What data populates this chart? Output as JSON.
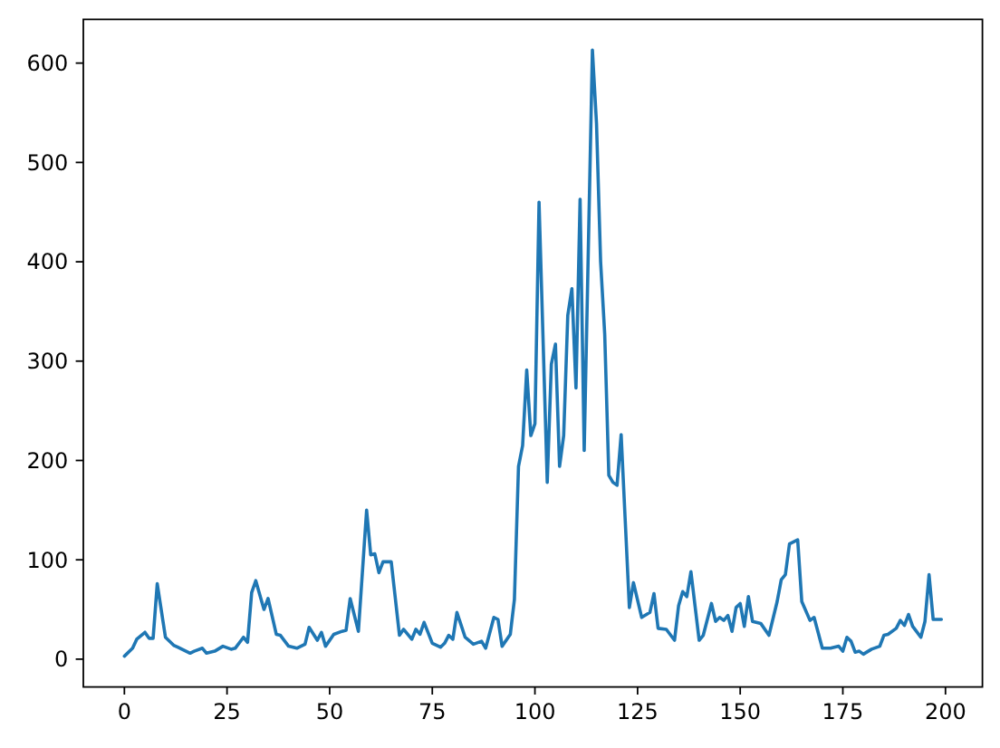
{
  "chart_data": {
    "type": "line",
    "color": "#1f77b4",
    "x": [
      0,
      2,
      3,
      5,
      6,
      7,
      8,
      10,
      12,
      13,
      16,
      17,
      19,
      20,
      22,
      24,
      26,
      27,
      29,
      30,
      31,
      32,
      34,
      35,
      37,
      38,
      40,
      42,
      44,
      45,
      47,
      48,
      49,
      51,
      53,
      54,
      55,
      57,
      59,
      60,
      61,
      62,
      63,
      65,
      67,
      68,
      70,
      71,
      72,
      73,
      75,
      77,
      78,
      79,
      80,
      81,
      83,
      85,
      87,
      88,
      90,
      91,
      92,
      94,
      95,
      96,
      97,
      98,
      99,
      100,
      101,
      103,
      104,
      105,
      106,
      107,
      108,
      109,
      110,
      111,
      112,
      114,
      115,
      116,
      117,
      118,
      119,
      120,
      121,
      123,
      124,
      126,
      128,
      129,
      130,
      132,
      134,
      135,
      136,
      137,
      138,
      140,
      141,
      143,
      144,
      145,
      146,
      147,
      148,
      149,
      150,
      151,
      152,
      153,
      155,
      157,
      159,
      160,
      161,
      162,
      164,
      165,
      167,
      168,
      170,
      172,
      174,
      175,
      176,
      177,
      178,
      179,
      180,
      182,
      184,
      185,
      186,
      188,
      189,
      190,
      191,
      192,
      194,
      195,
      196,
      197,
      199
    ],
    "values": [
      3,
      11,
      20,
      27,
      21,
      21,
      76,
      22,
      14,
      12,
      6,
      8,
      11,
      6,
      8,
      13,
      10,
      11,
      22,
      17,
      67,
      79,
      50,
      61,
      25,
      24,
      13,
      11,
      15,
      32,
      19,
      27,
      13,
      25,
      28,
      29,
      61,
      28,
      150,
      105,
      106,
      87,
      98,
      98,
      24,
      30,
      20,
      30,
      25,
      37,
      16,
      12,
      16,
      24,
      20,
      47,
      22,
      15,
      18,
      11,
      42,
      40,
      13,
      25,
      60,
      194,
      215,
      291,
      225,
      237,
      460,
      178,
      297,
      317,
      194,
      225,
      346,
      373,
      273,
      463,
      210,
      613,
      539,
      400,
      327,
      185,
      178,
      175,
      226,
      52,
      77,
      42,
      47,
      66,
      31,
      30,
      19,
      54,
      68,
      63,
      88,
      19,
      24,
      56,
      38,
      42,
      39,
      44,
      28,
      52,
      56,
      33,
      63,
      38,
      36,
      24,
      58,
      80,
      85,
      116,
      120,
      58,
      39,
      42,
      11,
      11,
      13,
      8,
      22,
      18,
      7,
      8,
      5,
      10,
      13,
      24,
      25,
      31,
      39,
      34,
      45,
      33,
      22,
      38,
      85,
      40,
      40
    ],
    "xlim": [
      -10,
      209
    ],
    "ylim": [
      -28,
      644
    ],
    "xticks": [
      0,
      25,
      50,
      75,
      100,
      125,
      150,
      175,
      200
    ],
    "yticks": [
      0,
      100,
      200,
      300,
      400,
      500,
      600
    ]
  }
}
